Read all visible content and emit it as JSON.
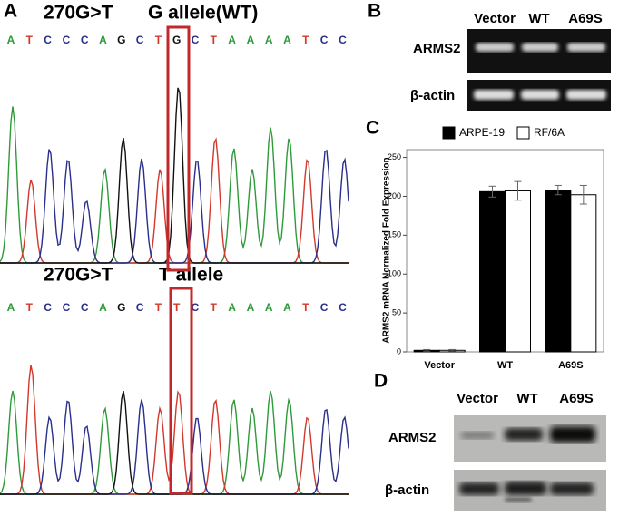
{
  "panel_a": {
    "label": "A",
    "sequences": [
      {
        "title": "270G>T",
        "allele": "G allele(WT)",
        "bases": [
          "A",
          "T",
          "C",
          "C",
          "C",
          "A",
          "G",
          "C",
          "T",
          "G",
          "C",
          "T",
          "A",
          "A",
          "A",
          "A",
          "T",
          "C",
          "C"
        ]
      },
      {
        "title": "270G>T",
        "allele": "T allele",
        "bases": [
          "A",
          "T",
          "C",
          "C",
          "C",
          "A",
          "G",
          "C",
          "T",
          "T",
          "C",
          "T",
          "A",
          "A",
          "A",
          "A",
          "T",
          "C",
          "C"
        ]
      }
    ]
  },
  "panel_b": {
    "label": "B",
    "lanes": [
      "Vector",
      "WT",
      "A69S"
    ],
    "rows": [
      "ARMS2",
      "β-actin"
    ]
  },
  "panel_d": {
    "label": "D",
    "lanes": [
      "Vector",
      "WT",
      "A69S"
    ],
    "rows": [
      "ARMS2",
      "β-actin"
    ]
  },
  "chart_data": {
    "type": "bar",
    "panel_label": "C",
    "y_label": "ARMS2 mRNA Normalized Fold Expression",
    "categories": [
      "Vector",
      "WT",
      "A69S"
    ],
    "series": [
      {
        "name": "ARPE-19",
        "color": "#000000",
        "values": [
          2,
          206,
          208
        ],
        "errors": [
          1,
          7,
          6
        ]
      },
      {
        "name": "RF/6A",
        "color": "#ffffff",
        "values": [
          2,
          207,
          202
        ],
        "errors": [
          1,
          12,
          12
        ]
      }
    ],
    "ylim": [
      0,
      260
    ],
    "yticks": [
      0,
      50,
      100,
      150,
      200,
      250
    ]
  }
}
